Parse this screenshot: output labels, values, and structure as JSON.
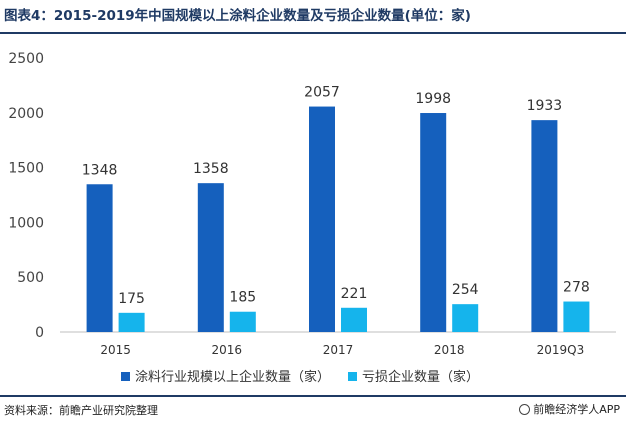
{
  "title": "图表4：2015-2019年中国规模以上涂料企业数量及亏损企业数量(单位：家)",
  "source": "资料来源：前瞻产业研究院整理",
  "brand": "前瞻经济学人APP",
  "chart_data": {
    "type": "bar",
    "categories": [
      "2015",
      "2016",
      "2017",
      "2018",
      "2019Q3"
    ],
    "series": [
      {
        "name": "涂料行业规模以上企业数量（家）",
        "values": [
          1348,
          1358,
          2057,
          1998,
          1933
        ],
        "color": "#1560bd"
      },
      {
        "name": "亏损企业数量（家）",
        "values": [
          175,
          185,
          221,
          254,
          278
        ],
        "color": "#15b4ec"
      }
    ],
    "ylim": [
      0,
      2500
    ],
    "yticks": [
      "0",
      "500",
      "1000",
      "1500",
      "2000",
      "2500"
    ],
    "grid": false,
    "legend": "bottom",
    "data_labels": true
  }
}
